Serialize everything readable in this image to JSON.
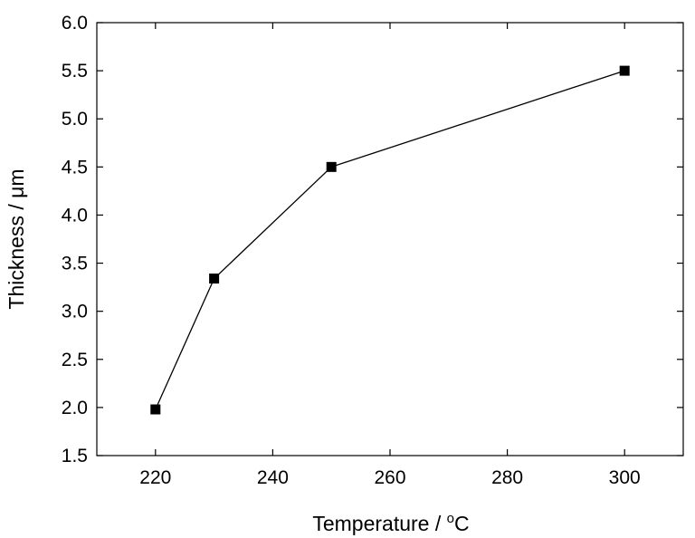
{
  "chart_data": {
    "type": "line",
    "xlabel": "Temperature / ",
    "xlabel_sup": "o",
    "xlabel_unit": "C",
    "ylabel": "Thickness / μm",
    "xlim": [
      210,
      310
    ],
    "ylim": [
      1.5,
      6.0
    ],
    "xticks": [
      220,
      240,
      260,
      280,
      300
    ],
    "yticks": [
      "1.5",
      "2.0",
      "2.5",
      "3.0",
      "3.5",
      "4.0",
      "4.5",
      "5.0",
      "5.5",
      "6.0"
    ],
    "series": [
      {
        "x": [
          220,
          230,
          250,
          300
        ],
        "y": [
          1.98,
          3.34,
          4.5,
          5.5
        ],
        "marker": "square",
        "color": "#000000"
      }
    ],
    "grid": false,
    "legend": "none"
  }
}
